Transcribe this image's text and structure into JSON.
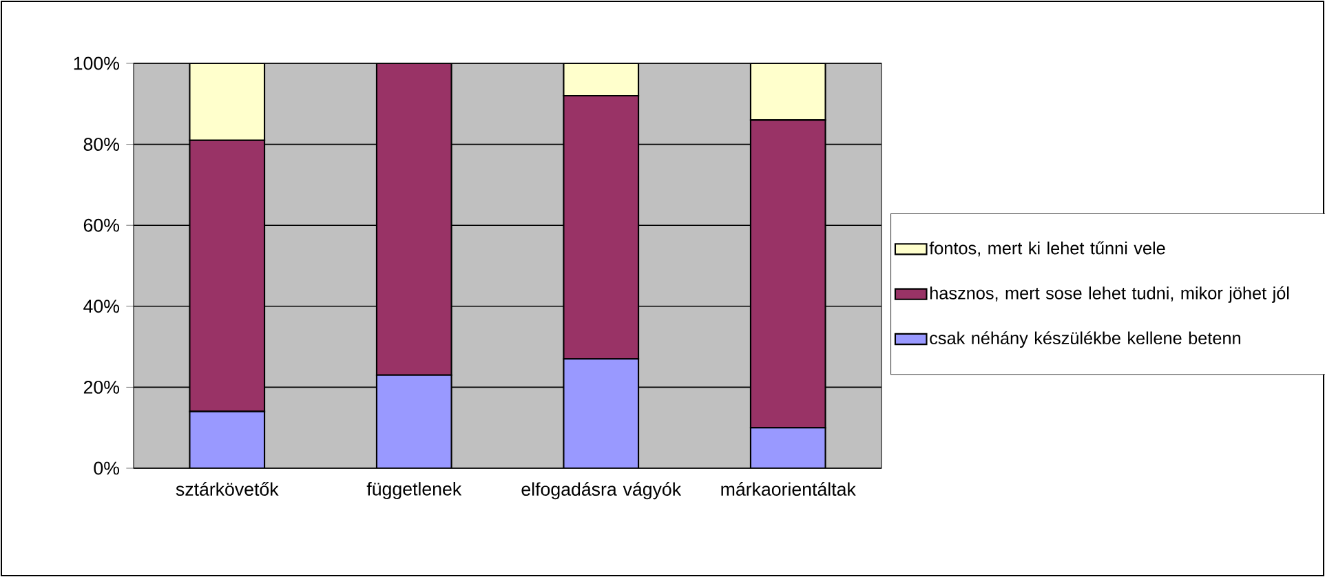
{
  "chart_data": {
    "type": "bar",
    "stacked": true,
    "categories": [
      "sztárkövetők",
      "függetlenek",
      "elfogadásra vágyók",
      "márkaorientáltak"
    ],
    "series": [
      {
        "name": "csak néhány készülékbe kellene betenn",
        "color": "#9999ff",
        "values": [
          14,
          23,
          27,
          10
        ]
      },
      {
        "name": "hasznos, mert sose lehet tudni, mikor jöhet jól",
        "color": "#993366",
        "values": [
          67,
          77,
          65,
          76
        ]
      },
      {
        "name": "fontos, mert ki lehet tűnni vele",
        "color": "#ffffcc",
        "values": [
          19,
          0,
          8,
          14
        ]
      }
    ],
    "ylim": [
      0,
      100
    ],
    "yticks": [
      {
        "value": 0,
        "label": "0%"
      },
      {
        "value": 20,
        "label": "20%"
      },
      {
        "value": 40,
        "label": "40%"
      },
      {
        "value": 60,
        "label": "60%"
      },
      {
        "value": 80,
        "label": "80%"
      },
      {
        "value": 100,
        "label": "100%"
      }
    ],
    "grid": "y",
    "legend": "right"
  }
}
